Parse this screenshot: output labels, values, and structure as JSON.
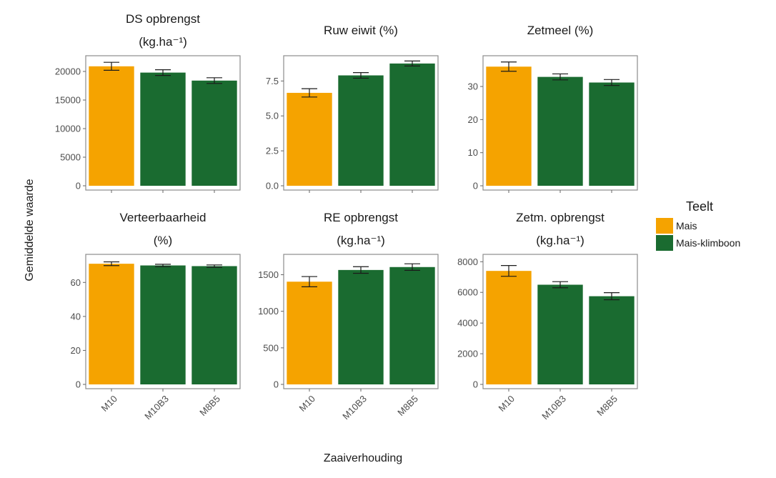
{
  "chart_data": {
    "type": "bar",
    "categories": [
      "M10",
      "M10B3",
      "M8B5"
    ],
    "xlabel": "Zaaiverhouding",
    "ylabel": "Gemiddelde waarde",
    "legend": {
      "title": "Teelt",
      "placement": "right",
      "entries": [
        {
          "label": "Mais",
          "color": "#F5A300"
        },
        {
          "label": "Mais-klimboon",
          "color": "#1A6B30"
        }
      ]
    },
    "category_group": [
      "Mais",
      "Mais-klimboon",
      "Mais-klimboon"
    ],
    "facets": [
      {
        "title_lines": [
          "DS opbrengst",
          "(kg.ha⁻¹)"
        ],
        "ylim": [
          0,
          22000
        ],
        "yticks": [
          0,
          5000,
          10000,
          15000,
          20000
        ],
        "values": [
          20900,
          19800,
          18400
        ],
        "errors": [
          700,
          500,
          500
        ]
      },
      {
        "title_lines": [
          "Ruw eiwit (%)"
        ],
        "ylim": [
          0,
          9
        ],
        "yticks": [
          0.0,
          2.5,
          5.0,
          7.5
        ],
        "tick_decimals": 1,
        "values": [
          6.65,
          7.9,
          8.75
        ],
        "errors": [
          0.3,
          0.2,
          0.18
        ]
      },
      {
        "title_lines": [
          "Zetmeel (%)"
        ],
        "ylim": [
          0,
          38
        ],
        "yticks": [
          0,
          10,
          20,
          30
        ],
        "values": [
          36.0,
          32.9,
          31.2
        ],
        "errors": [
          1.4,
          0.9,
          0.9
        ]
      },
      {
        "title_lines": [
          "Verteerbaarheid",
          "(%)"
        ],
        "ylim": [
          0,
          74
        ],
        "yticks": [
          0,
          20,
          40,
          60
        ],
        "values": [
          71.0,
          70.0,
          69.6
        ],
        "errors": [
          1.1,
          0.7,
          0.7
        ]
      },
      {
        "title_lines": [
          "RE opbrengst",
          "(kg.ha⁻¹)"
        ],
        "ylim": [
          0,
          1720
        ],
        "yticks": [
          0,
          500,
          1000,
          1500
        ],
        "values": [
          1405,
          1565,
          1605
        ],
        "errors": [
          70,
          45,
          45
        ]
      },
      {
        "title_lines": [
          "Zetm. opbrengst",
          "(kg.ha⁻¹)"
        ],
        "ylim": [
          0,
          8200
        ],
        "yticks": [
          0,
          2000,
          4000,
          6000,
          8000
        ],
        "values": [
          7400,
          6500,
          5750
        ],
        "errors": [
          350,
          200,
          230
        ]
      }
    ]
  }
}
